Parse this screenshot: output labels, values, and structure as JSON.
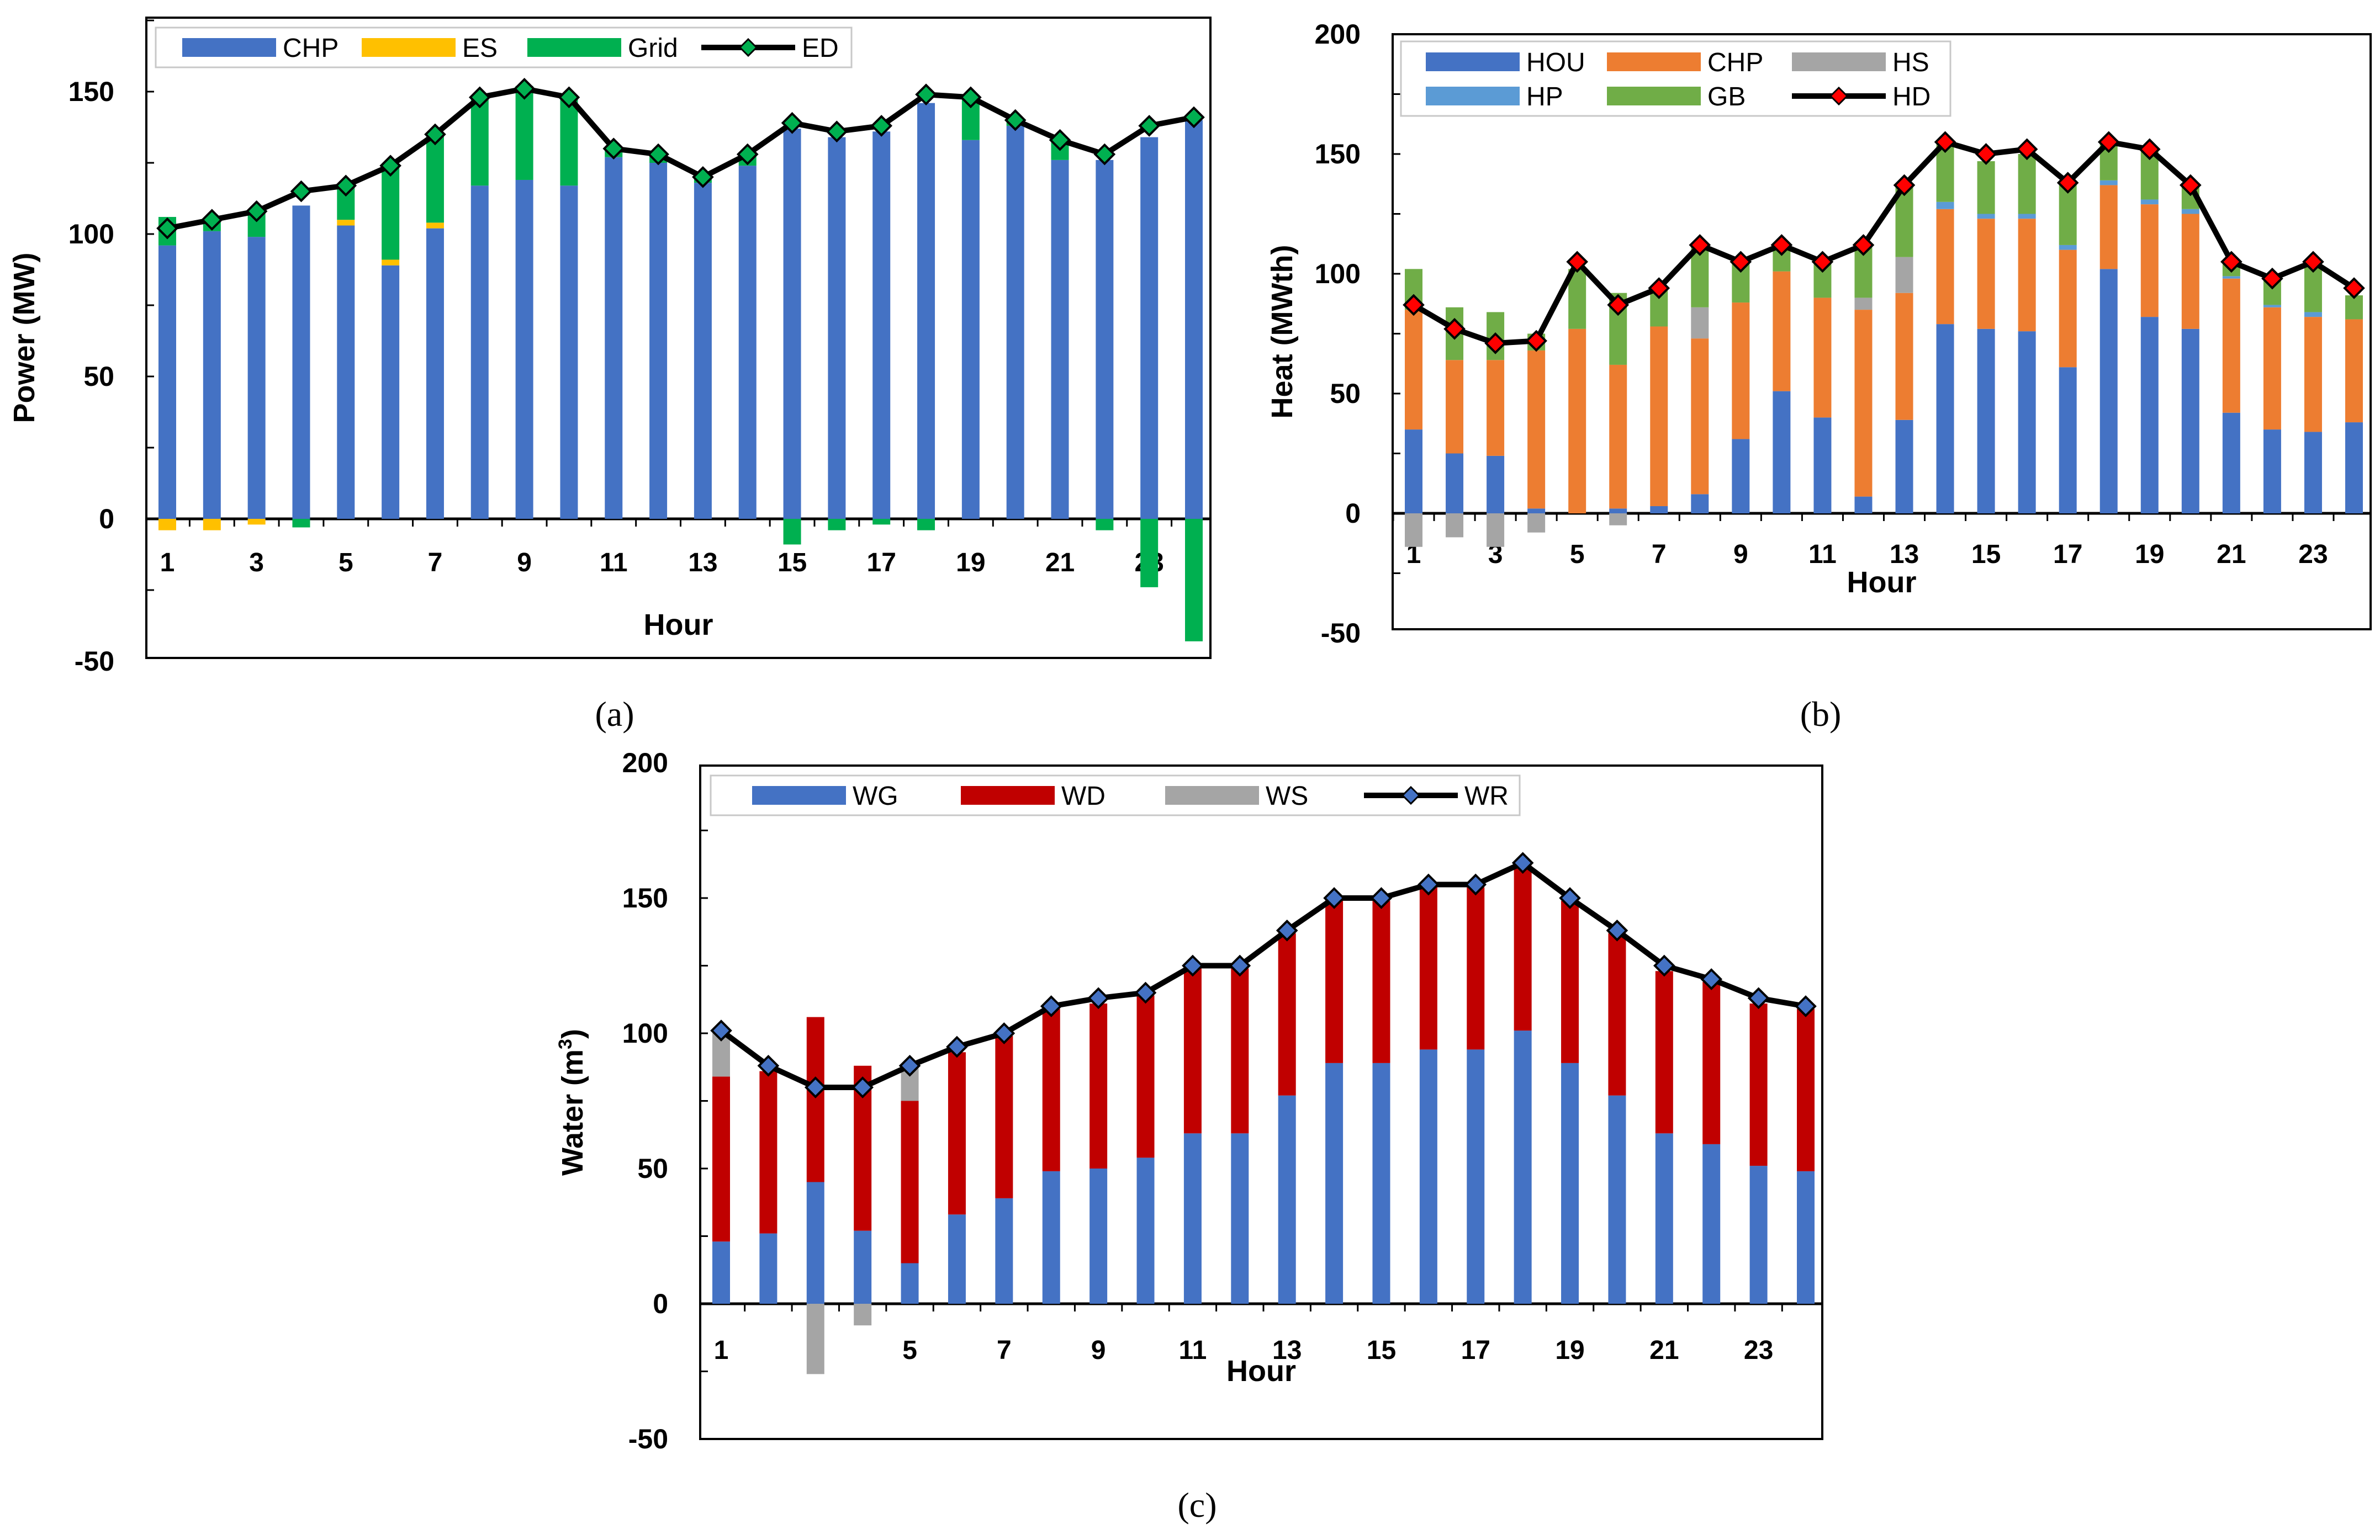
{
  "chart_data": [
    {
      "id": "a",
      "type": "bar",
      "stacked": true,
      "caption": "(a)",
      "xlabel": "Hour",
      "ylabel": "Power (MW)",
      "ylim": [
        -50,
        175
      ],
      "yticks": [
        -50,
        0,
        50,
        100,
        150
      ],
      "x": [
        1,
        2,
        3,
        4,
        5,
        6,
        7,
        8,
        9,
        10,
        11,
        12,
        13,
        14,
        15,
        16,
        17,
        18,
        19,
        20,
        21,
        22,
        23,
        24
      ],
      "xtick_labels": [
        "1",
        "3",
        "5",
        "7",
        "9",
        "11",
        "13",
        "15",
        "17",
        "19",
        "21",
        "23"
      ],
      "series": [
        {
          "name": "CHP",
          "kind": "bar",
          "color": "#4472C4",
          "values": [
            96,
            101,
            99,
            110,
            103,
            89,
            102,
            117,
            119,
            117,
            127,
            125,
            118,
            124,
            137,
            134,
            136,
            146,
            133,
            138,
            126,
            126,
            134,
            140
          ]
        },
        {
          "name": "ES",
          "kind": "bar",
          "color": "#FFC000",
          "values": [
            -4,
            -4,
            -2,
            0,
            2,
            2,
            2,
            0,
            0,
            0,
            0,
            0,
            0,
            0,
            0,
            0,
            0,
            0,
            0,
            0,
            0,
            0,
            0,
            0
          ]
        },
        {
          "name": "Grid",
          "kind": "bar",
          "color": "#00B050",
          "values": [
            10,
            4,
            9,
            -3,
            12,
            33,
            31,
            31,
            33,
            31,
            3,
            3,
            2,
            4,
            -9,
            -4,
            -2,
            -4,
            15,
            2,
            7,
            -4,
            -24,
            -43
          ]
        },
        {
          "name": "ED",
          "kind": "line",
          "color": "#000000",
          "marker_color": "#00B050",
          "values": [
            102,
            105,
            108,
            115,
            117,
            124,
            135,
            148,
            151,
            148,
            130,
            128,
            120,
            128,
            139,
            136,
            138,
            149,
            148,
            140,
            133,
            128,
            138,
            141
          ]
        }
      ],
      "legend_placement": "top-left"
    },
    {
      "id": "b",
      "type": "bar",
      "stacked": true,
      "caption": "(b)",
      "xlabel": "Hour",
      "ylabel": "Heat (MWth)",
      "ylim": [
        -50,
        200
      ],
      "yticks": [
        -50,
        0,
        50,
        100,
        150,
        200
      ],
      "x": [
        1,
        2,
        3,
        4,
        5,
        6,
        7,
        8,
        9,
        10,
        11,
        12,
        13,
        14,
        15,
        16,
        17,
        18,
        19,
        20,
        21,
        22,
        23,
        24
      ],
      "xtick_labels": [
        "1",
        "3",
        "5",
        "7",
        "9",
        "11",
        "13",
        "15",
        "17",
        "19",
        "21",
        "23"
      ],
      "series": [
        {
          "name": "HOU",
          "kind": "bar",
          "color": "#4472C4",
          "values": [
            35,
            25,
            24,
            2,
            0,
            2,
            3,
            8,
            31,
            51,
            40,
            7,
            39,
            79,
            77,
            76,
            61,
            102,
            82,
            77,
            42,
            35,
            34,
            38
          ]
        },
        {
          "name": "CHP",
          "kind": "bar",
          "color": "#ED7D31",
          "values": [
            50,
            39,
            40,
            66,
            77,
            60,
            75,
            65,
            57,
            50,
            50,
            78,
            53,
            48,
            46,
            47,
            49,
            35,
            47,
            48,
            56,
            51,
            48,
            43
          ]
        },
        {
          "name": "HS",
          "kind": "bar",
          "color": "#A5A5A5",
          "values": [
            -14,
            -10,
            -14,
            -8,
            0,
            -5,
            0,
            13,
            0,
            0,
            0,
            5,
            15,
            0,
            0,
            0,
            0,
            0,
            0,
            0,
            0,
            0,
            0,
            0
          ]
        },
        {
          "name": "HP",
          "kind": "bar",
          "color": "#5B9BD5",
          "values": [
            0,
            0,
            0,
            0,
            0,
            0,
            0,
            0,
            0,
            0,
            0,
            0,
            0,
            3,
            2,
            2,
            2,
            2,
            2,
            2,
            1,
            1,
            2,
            0
          ]
        },
        {
          "name": "GB",
          "kind": "bar",
          "color": "#70AD47",
          "values": [
            17,
            22,
            20,
            7,
            25,
            30,
            15,
            26,
            16,
            10,
            14,
            21,
            30,
            24,
            22,
            25,
            25,
            16,
            20,
            10,
            5,
            10,
            19,
            10
          ]
        },
        {
          "name": "HD",
          "kind": "line",
          "color": "#000000",
          "marker_color": "#FF0000",
          "values": [
            87,
            77,
            71,
            72,
            105,
            87,
            94,
            112,
            105,
            112,
            105,
            112,
            137,
            155,
            150,
            152,
            138,
            155,
            152,
            137,
            105,
            98,
            105,
            94
          ]
        }
      ],
      "legend_placement": "top-left"
    },
    {
      "id": "c",
      "type": "bar",
      "stacked": true,
      "caption": "(c)",
      "xlabel": "Hour",
      "ylabel": "Water (m",
      "ylabel_sup": "3",
      "ylabel_close": ")",
      "ylim": [
        -50,
        200
      ],
      "yticks": [
        -50,
        0,
        50,
        100,
        150,
        200
      ],
      "x": [
        1,
        2,
        3,
        4,
        5,
        6,
        7,
        8,
        9,
        10,
        11,
        12,
        13,
        14,
        15,
        16,
        17,
        18,
        19,
        20,
        21,
        22,
        23,
        24
      ],
      "xtick_labels": [
        "1",
        "3",
        "5",
        "7",
        "9",
        "11",
        "13",
        "15",
        "17",
        "19",
        "21",
        "23"
      ],
      "series": [
        {
          "name": "WG",
          "kind": "bar",
          "color": "#4472C4",
          "values": [
            23,
            26,
            45,
            27,
            15,
            33,
            39,
            49,
            50,
            54,
            63,
            63,
            77,
            89,
            89,
            94,
            94,
            101,
            89,
            77,
            63,
            59,
            51,
            49
          ]
        },
        {
          "name": "WD",
          "kind": "bar",
          "color": "#C00000",
          "values": [
            61,
            60,
            61,
            61,
            60,
            60,
            60,
            60,
            61,
            60,
            61,
            61,
            60,
            61,
            60,
            60,
            60,
            61,
            60,
            60,
            60,
            60,
            60,
            60
          ]
        },
        {
          "name": "WS",
          "kind": "bar",
          "color": "#A5A5A5",
          "values": [
            16,
            0,
            -26,
            -8,
            12,
            0,
            0,
            0,
            0,
            0,
            0,
            0,
            0,
            0,
            0,
            0,
            0,
            0,
            0,
            0,
            0,
            0,
            0,
            0
          ]
        },
        {
          "name": "WR",
          "kind": "line",
          "color": "#000000",
          "marker_color": "#4472C4",
          "values": [
            101,
            88,
            80,
            80,
            88,
            95,
            100,
            110,
            113,
            115,
            125,
            125,
            138,
            150,
            150,
            155,
            155,
            163,
            150,
            138,
            125,
            120,
            113,
            110
          ]
        }
      ],
      "legend_placement": "top-left"
    }
  ]
}
